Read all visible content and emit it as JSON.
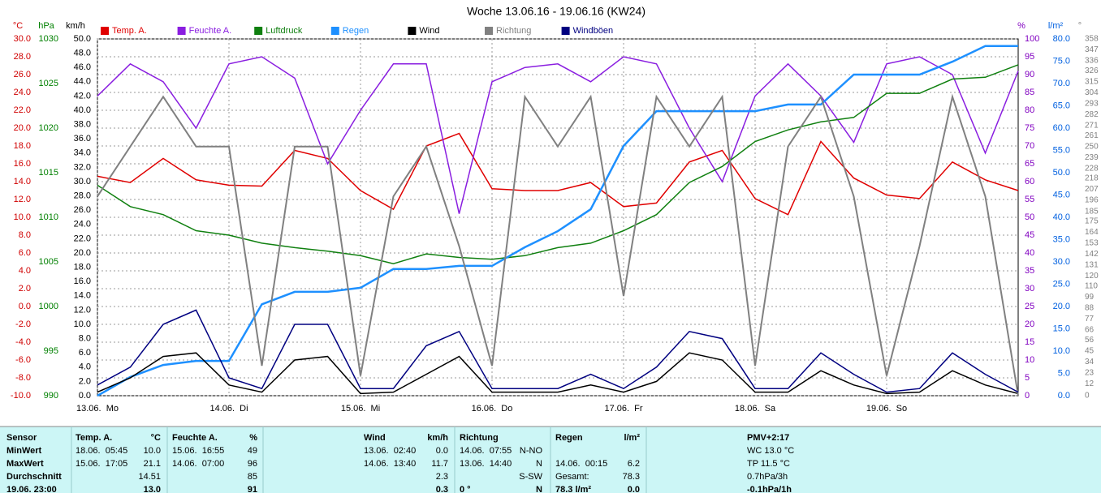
{
  "chart_data": {
    "type": "line",
    "title": "Woche 13.06.16 - 19.06.16 (KW24)",
    "grid": true,
    "x": [
      0,
      6,
      12,
      18,
      24,
      30,
      36,
      42,
      48,
      54,
      60,
      66,
      72,
      78,
      84,
      90,
      96,
      102,
      108,
      114,
      120,
      126,
      132,
      138,
      144,
      150,
      156,
      162,
      168
    ],
    "xlim": [
      0,
      168
    ],
    "xticks": [
      {
        "value": 0,
        "label": "13.06.  Mo"
      },
      {
        "value": 24,
        "label": "14.06.  Di"
      },
      {
        "value": 48,
        "label": "15.06.  Mi"
      },
      {
        "value": 72,
        "label": "16.06.  Do"
      },
      {
        "value": 96,
        "label": "17.06.  Fr"
      },
      {
        "value": 120,
        "label": "18.06.  Sa"
      },
      {
        "value": 144,
        "label": "19.06.  So"
      }
    ],
    "axes": [
      {
        "name": "°C",
        "color": "#d00000",
        "ylim": [
          -10,
          30
        ],
        "yticks": [
          {
            "value": -10,
            "label": "-10.0"
          },
          {
            "value": -8,
            "label": "-8.0"
          },
          {
            "value": -6,
            "label": "-6.0"
          },
          {
            "value": -4,
            "label": "-4.0"
          },
          {
            "value": -2,
            "label": "-2.0"
          },
          {
            "value": 0,
            "label": "0.0"
          },
          {
            "value": 2,
            "label": "2.0"
          },
          {
            "value": 4,
            "label": "4.0"
          },
          {
            "value": 6,
            "label": "6.0"
          },
          {
            "value": 8,
            "label": "8.0"
          },
          {
            "value": 10,
            "label": "10.0"
          },
          {
            "value": 12,
            "label": "12.0"
          },
          {
            "value": 14,
            "label": "14.0"
          },
          {
            "value": 16,
            "label": "16.0"
          },
          {
            "value": 18,
            "label": "18.0"
          },
          {
            "value": 20,
            "label": "20.0"
          },
          {
            "value": 22,
            "label": "22.0"
          },
          {
            "value": 24,
            "label": "24.0"
          },
          {
            "value": 26,
            "label": "26.0"
          },
          {
            "value": 28,
            "label": "28.0"
          },
          {
            "value": 30,
            "label": "30.0"
          }
        ]
      },
      {
        "name": "hPa",
        "color": "#008000",
        "ylim": [
          990,
          1030
        ],
        "yticks": [
          990,
          995,
          1000,
          1005,
          1010,
          1015,
          1020,
          1025,
          1030
        ]
      },
      {
        "name": "km/h",
        "color": "#000000",
        "ylim": [
          0,
          50
        ],
        "yticks": [
          {
            "value": 0,
            "label": "0.0"
          },
          {
            "value": 2,
            "label": "2.0"
          },
          {
            "value": 4,
            "label": "4.0"
          },
          {
            "value": 6,
            "label": "6.0"
          },
          {
            "value": 8,
            "label": "8.0"
          },
          {
            "value": 10,
            "label": "10.0"
          },
          {
            "value": 12,
            "label": "12.0"
          },
          {
            "value": 14,
            "label": "14.0"
          },
          {
            "value": 16,
            "label": "16.0"
          },
          {
            "value": 18,
            "label": "18.0"
          },
          {
            "value": 20,
            "label": "20.0"
          },
          {
            "value": 22,
            "label": "22.0"
          },
          {
            "value": 24,
            "label": "24.0"
          },
          {
            "value": 26,
            "label": "26.0"
          },
          {
            "value": 28,
            "label": "28.0"
          },
          {
            "value": 30,
            "label": "30.0"
          },
          {
            "value": 32,
            "label": "32.0"
          },
          {
            "value": 34,
            "label": "34.0"
          },
          {
            "value": 36,
            "label": "36.0"
          },
          {
            "value": 38,
            "label": "38.0"
          },
          {
            "value": 40,
            "label": "40.0"
          },
          {
            "value": 42,
            "label": "42.0"
          },
          {
            "value": 44,
            "label": "44.0"
          },
          {
            "value": 46,
            "label": "46.0"
          },
          {
            "value": 48,
            "label": "48.0"
          },
          {
            "value": 50,
            "label": "50.0"
          }
        ]
      },
      {
        "name": "%",
        "color": "#8000c0",
        "ylim": [
          0,
          100
        ],
        "yticks": [
          0,
          5,
          10,
          15,
          20,
          25,
          30,
          35,
          40,
          45,
          50,
          55,
          60,
          65,
          70,
          75,
          80,
          85,
          90,
          95,
          100
        ]
      },
      {
        "name": "l/m²",
        "color": "#0060e0",
        "ylim": [
          0,
          80
        ],
        "yticks": [
          {
            "value": 0,
            "label": "0.0"
          },
          {
            "value": 5,
            "label": "5.0"
          },
          {
            "value": 10,
            "label": "10.0"
          },
          {
            "value": 15,
            "label": "15.0"
          },
          {
            "value": 20,
            "label": "20.0"
          },
          {
            "value": 25,
            "label": "25.0"
          },
          {
            "value": 30,
            "label": "30.0"
          },
          {
            "value": 35,
            "label": "35.0"
          },
          {
            "value": 40,
            "label": "40.0"
          },
          {
            "value": 45,
            "label": "45.0"
          },
          {
            "value": 50,
            "label": "50.0"
          },
          {
            "value": 55,
            "label": "55.0"
          },
          {
            "value": 60,
            "label": "60.0"
          },
          {
            "value": 65,
            "label": "65.0"
          },
          {
            "value": 70,
            "label": "70.0"
          },
          {
            "value": 75,
            "label": "75.0"
          },
          {
            "value": 80,
            "label": "80.0"
          }
        ]
      },
      {
        "name": "°",
        "color": "#808080",
        "ylim": [
          0,
          358
        ],
        "yticks": [
          0,
          12,
          23,
          34,
          45,
          56,
          66,
          77,
          88,
          99,
          110,
          120,
          131,
          142,
          153,
          164,
          175,
          185,
          196,
          207,
          218,
          228,
          239,
          250,
          261,
          271,
          282,
          293,
          304,
          315,
          326,
          336,
          347,
          358
        ]
      }
    ],
    "series": [
      {
        "name": "Temp. A.",
        "color": "#e00000",
        "axis": 0,
        "values": [
          14.6,
          13.9,
          16.6,
          14.2,
          13.6,
          13.5,
          17.5,
          16.6,
          13.0,
          10.9,
          18.0,
          19.4,
          13.2,
          13.0,
          13.0,
          13.9,
          11.2,
          11.6,
          16.2,
          17.5,
          12.1,
          10.3,
          18.5,
          14.4,
          12.5,
          12.1,
          16.2,
          14.2,
          13.0
        ]
      },
      {
        "name": "Feuchte A.",
        "color": "#8a1ee0",
        "axis": 3,
        "values": [
          84,
          93,
          88,
          75,
          93,
          95,
          89,
          65,
          80,
          93,
          93,
          51,
          88,
          92,
          93,
          88,
          95,
          93,
          75,
          60,
          84,
          93,
          84,
          71,
          93,
          95,
          90,
          68,
          91
        ]
      },
      {
        "name": "Luftdruck",
        "color": "#108010",
        "axis": 1,
        "values": [
          1013.6,
          1011.2,
          1010.3,
          1008.5,
          1008.0,
          1007.1,
          1006.6,
          1006.2,
          1005.7,
          1004.8,
          1005.9,
          1005.5,
          1005.3,
          1005.7,
          1006.6,
          1007.1,
          1008.5,
          1010.3,
          1013.9,
          1015.7,
          1018.5,
          1019.8,
          1020.7,
          1021.2,
          1023.9,
          1023.9,
          1025.5,
          1025.7,
          1027.1
        ]
      },
      {
        "name": "Regen",
        "color": "#1e90ff",
        "axis": 4,
        "values": [
          0,
          4.2,
          6.9,
          7.8,
          7.8,
          20.5,
          23.3,
          23.3,
          24.2,
          28.4,
          28.4,
          29.1,
          29.1,
          33.3,
          36.9,
          41.8,
          56,
          63.8,
          63.8,
          63.8,
          63.8,
          65.3,
          65.3,
          72,
          72,
          72,
          74.9,
          78.4,
          78.4
        ]
      },
      {
        "name": "Wind",
        "color": "#000000",
        "axis": 2,
        "values": [
          0.5,
          2.5,
          5.5,
          6.0,
          1.5,
          0.5,
          5.0,
          5.5,
          0.3,
          0.5,
          3.0,
          5.5,
          0.5,
          0.5,
          0.5,
          1.5,
          0.5,
          2.0,
          6.0,
          5.0,
          0.5,
          0.5,
          3.5,
          1.5,
          0.3,
          0.5,
          3.5,
          1.5,
          0.3
        ]
      },
      {
        "name": "Richtung",
        "color": "#808080",
        "axis": 5,
        "values": [
          200,
          250,
          300,
          250,
          250,
          30,
          250,
          250,
          20,
          200,
          250,
          150,
          30,
          300,
          250,
          300,
          100,
          300,
          250,
          300,
          30,
          250,
          300,
          200,
          20,
          150,
          300,
          200,
          0
        ]
      },
      {
        "name": "Windböen",
        "color": "#000080",
        "axis": 2,
        "values": [
          1.5,
          4,
          10,
          12,
          2.5,
          1,
          10,
          10,
          1,
          1,
          7,
          9,
          1,
          1,
          1,
          3,
          1,
          4,
          9,
          8,
          1,
          1,
          6,
          3,
          0.5,
          1,
          6,
          3,
          0.5
        ]
      }
    ]
  },
  "table": {
    "header": [
      "Sensor",
      "Temp. A.",
      "°C",
      "Feuchte A.",
      "%",
      "Wind",
      "km/h",
      "Richtung",
      null,
      "Regen",
      "l/m²",
      "PMV+2:17"
    ],
    "rows": [
      [
        "MinWert",
        "18.06.  05:45",
        "10.0",
        "15.06.  16:55",
        "49",
        "13.06.  02:40",
        "0.0",
        "14.06.  07:55",
        "N-NO",
        null,
        null,
        "WC 13.0 °C"
      ],
      [
        "MaxWert",
        "15.06.  17:05",
        "21.1",
        "14.06.  07:00",
        "96",
        "14.06.  13:40",
        "11.7",
        "13.06.  14:40",
        "N",
        "14.06.  00:15",
        "6.2",
        "TP 11.5 °C"
      ],
      [
        "Durchschnitt",
        null,
        "14.51",
        null,
        "85",
        null,
        "2.3",
        null,
        "S-SW",
        "Gesamt:",
        "78.3",
        "0.7hPa/3h"
      ],
      [
        "19.06. 23:00",
        null,
        "13.0",
        null,
        "91",
        null,
        "0.3",
        "0 °",
        "N",
        "78.3 l/m²",
        "0.0",
        "-0.1hPa/1h"
      ]
    ]
  }
}
